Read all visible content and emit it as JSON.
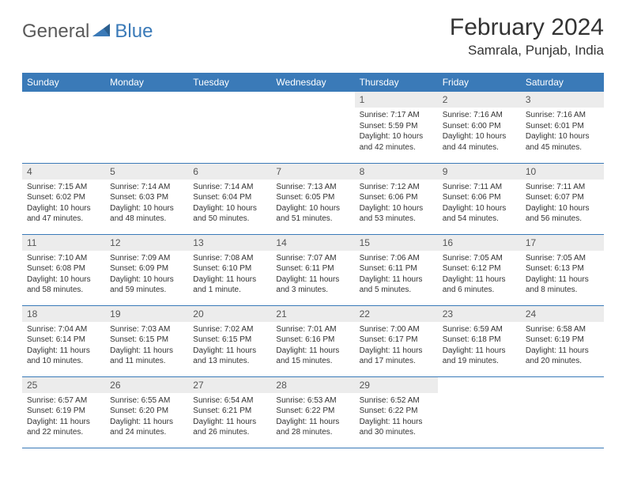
{
  "logo": {
    "general": "General",
    "blue": "Blue"
  },
  "title": {
    "month_year": "February 2024",
    "location": "Samrala, Punjab, India"
  },
  "colors": {
    "header_bg": "#3a7ab8",
    "header_text": "#ffffff",
    "daynum_bg": "#ececec",
    "daynum_text": "#555555",
    "body_text": "#333333",
    "border": "#3a7ab8",
    "logo_gray": "#5a5a5a",
    "logo_blue": "#3a7ab8"
  },
  "days_of_week": [
    "Sunday",
    "Monday",
    "Tuesday",
    "Wednesday",
    "Thursday",
    "Friday",
    "Saturday"
  ],
  "weeks": [
    [
      null,
      null,
      null,
      null,
      {
        "n": "1",
        "sr": "7:17 AM",
        "ss": "5:59 PM",
        "dl": "10 hours and 42 minutes."
      },
      {
        "n": "2",
        "sr": "7:16 AM",
        "ss": "6:00 PM",
        "dl": "10 hours and 44 minutes."
      },
      {
        "n": "3",
        "sr": "7:16 AM",
        "ss": "6:01 PM",
        "dl": "10 hours and 45 minutes."
      }
    ],
    [
      {
        "n": "4",
        "sr": "7:15 AM",
        "ss": "6:02 PM",
        "dl": "10 hours and 47 minutes."
      },
      {
        "n": "5",
        "sr": "7:14 AM",
        "ss": "6:03 PM",
        "dl": "10 hours and 48 minutes."
      },
      {
        "n": "6",
        "sr": "7:14 AM",
        "ss": "6:04 PM",
        "dl": "10 hours and 50 minutes."
      },
      {
        "n": "7",
        "sr": "7:13 AM",
        "ss": "6:05 PM",
        "dl": "10 hours and 51 minutes."
      },
      {
        "n": "8",
        "sr": "7:12 AM",
        "ss": "6:06 PM",
        "dl": "10 hours and 53 minutes."
      },
      {
        "n": "9",
        "sr": "7:11 AM",
        "ss": "6:06 PM",
        "dl": "10 hours and 54 minutes."
      },
      {
        "n": "10",
        "sr": "7:11 AM",
        "ss": "6:07 PM",
        "dl": "10 hours and 56 minutes."
      }
    ],
    [
      {
        "n": "11",
        "sr": "7:10 AM",
        "ss": "6:08 PM",
        "dl": "10 hours and 58 minutes."
      },
      {
        "n": "12",
        "sr": "7:09 AM",
        "ss": "6:09 PM",
        "dl": "10 hours and 59 minutes."
      },
      {
        "n": "13",
        "sr": "7:08 AM",
        "ss": "6:10 PM",
        "dl": "11 hours and 1 minute."
      },
      {
        "n": "14",
        "sr": "7:07 AM",
        "ss": "6:11 PM",
        "dl": "11 hours and 3 minutes."
      },
      {
        "n": "15",
        "sr": "7:06 AM",
        "ss": "6:11 PM",
        "dl": "11 hours and 5 minutes."
      },
      {
        "n": "16",
        "sr": "7:05 AM",
        "ss": "6:12 PM",
        "dl": "11 hours and 6 minutes."
      },
      {
        "n": "17",
        "sr": "7:05 AM",
        "ss": "6:13 PM",
        "dl": "11 hours and 8 minutes."
      }
    ],
    [
      {
        "n": "18",
        "sr": "7:04 AM",
        "ss": "6:14 PM",
        "dl": "11 hours and 10 minutes."
      },
      {
        "n": "19",
        "sr": "7:03 AM",
        "ss": "6:15 PM",
        "dl": "11 hours and 11 minutes."
      },
      {
        "n": "20",
        "sr": "7:02 AM",
        "ss": "6:15 PM",
        "dl": "11 hours and 13 minutes."
      },
      {
        "n": "21",
        "sr": "7:01 AM",
        "ss": "6:16 PM",
        "dl": "11 hours and 15 minutes."
      },
      {
        "n": "22",
        "sr": "7:00 AM",
        "ss": "6:17 PM",
        "dl": "11 hours and 17 minutes."
      },
      {
        "n": "23",
        "sr": "6:59 AM",
        "ss": "6:18 PM",
        "dl": "11 hours and 19 minutes."
      },
      {
        "n": "24",
        "sr": "6:58 AM",
        "ss": "6:19 PM",
        "dl": "11 hours and 20 minutes."
      }
    ],
    [
      {
        "n": "25",
        "sr": "6:57 AM",
        "ss": "6:19 PM",
        "dl": "11 hours and 22 minutes."
      },
      {
        "n": "26",
        "sr": "6:55 AM",
        "ss": "6:20 PM",
        "dl": "11 hours and 24 minutes."
      },
      {
        "n": "27",
        "sr": "6:54 AM",
        "ss": "6:21 PM",
        "dl": "11 hours and 26 minutes."
      },
      {
        "n": "28",
        "sr": "6:53 AM",
        "ss": "6:22 PM",
        "dl": "11 hours and 28 minutes."
      },
      {
        "n": "29",
        "sr": "6:52 AM",
        "ss": "6:22 PM",
        "dl": "11 hours and 30 minutes."
      },
      null,
      null
    ]
  ],
  "labels": {
    "sunrise": "Sunrise:",
    "sunset": "Sunset:",
    "daylight": "Daylight:"
  }
}
